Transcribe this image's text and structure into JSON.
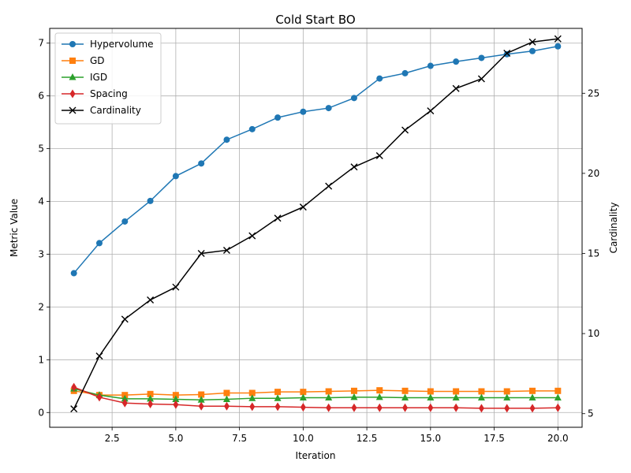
{
  "chart_data": {
    "type": "line",
    "title": "Cold Start BO",
    "xlabel": "Iteration",
    "ylabel": "Metric Value",
    "y2label": "Cardinality",
    "xlim": [
      0.05,
      20.95
    ],
    "ylim": [
      -0.28,
      7.28
    ],
    "y2lim": [
      4.15,
      29.05
    ],
    "xticks": [
      2.5,
      5.0,
      7.5,
      10.0,
      12.5,
      15.0,
      17.5,
      20.0
    ],
    "xtick_labels": [
      "2.5",
      "5.0",
      "7.5",
      "10.0",
      "12.5",
      "15.0",
      "17.5",
      "20.0"
    ],
    "yticks": [
      0,
      1,
      2,
      3,
      4,
      5,
      6,
      7
    ],
    "ytick_labels": [
      "0",
      "1",
      "2",
      "3",
      "4",
      "5",
      "6",
      "7"
    ],
    "y2ticks": [
      5,
      10,
      15,
      20,
      25
    ],
    "y2tick_labels": [
      "5",
      "10",
      "15",
      "20",
      "25"
    ],
    "grid": true,
    "legend_position": "top-left",
    "x": [
      1,
      2,
      3,
      4,
      5,
      6,
      7,
      8,
      9,
      10,
      11,
      12,
      13,
      14,
      15,
      16,
      17,
      18,
      19,
      20
    ],
    "series": [
      {
        "name": "Hypervolume",
        "axis": "left",
        "color": "#1f77b4",
        "marker": "circle",
        "values": [
          2.64,
          3.21,
          3.62,
          4.01,
          4.48,
          4.72,
          5.17,
          5.37,
          5.59,
          5.7,
          5.77,
          5.96,
          6.33,
          6.43,
          6.57,
          6.65,
          6.72,
          6.79,
          6.85,
          6.94
        ]
      },
      {
        "name": "GD",
        "axis": "left",
        "color": "#ff7f0e",
        "marker": "square",
        "values": [
          0.41,
          0.33,
          0.33,
          0.35,
          0.33,
          0.34,
          0.37,
          0.37,
          0.39,
          0.39,
          0.4,
          0.41,
          0.42,
          0.41,
          0.4,
          0.4,
          0.4,
          0.4,
          0.41,
          0.41
        ]
      },
      {
        "name": "IGD",
        "axis": "left",
        "color": "#2ca02c",
        "marker": "triangle",
        "values": [
          0.45,
          0.33,
          0.26,
          0.26,
          0.25,
          0.24,
          0.25,
          0.27,
          0.27,
          0.28,
          0.28,
          0.29,
          0.29,
          0.28,
          0.28,
          0.28,
          0.28,
          0.28,
          0.28,
          0.28
        ]
      },
      {
        "name": "Spacing",
        "axis": "left",
        "color": "#d62728",
        "marker": "diamond",
        "values": [
          0.48,
          0.29,
          0.18,
          0.16,
          0.15,
          0.12,
          0.12,
          0.11,
          0.11,
          0.1,
          0.09,
          0.09,
          0.09,
          0.09,
          0.09,
          0.09,
          0.08,
          0.08,
          0.08,
          0.09
        ]
      },
      {
        "name": "Cardinality",
        "axis": "right",
        "color": "#000000",
        "marker": "x",
        "values": [
          5.3,
          8.6,
          10.9,
          12.1,
          12.9,
          15.0,
          15.2,
          16.1,
          17.2,
          17.9,
          19.2,
          20.4,
          21.1,
          22.7,
          23.9,
          25.3,
          25.9,
          27.5,
          28.2,
          28.4
        ]
      }
    ]
  }
}
